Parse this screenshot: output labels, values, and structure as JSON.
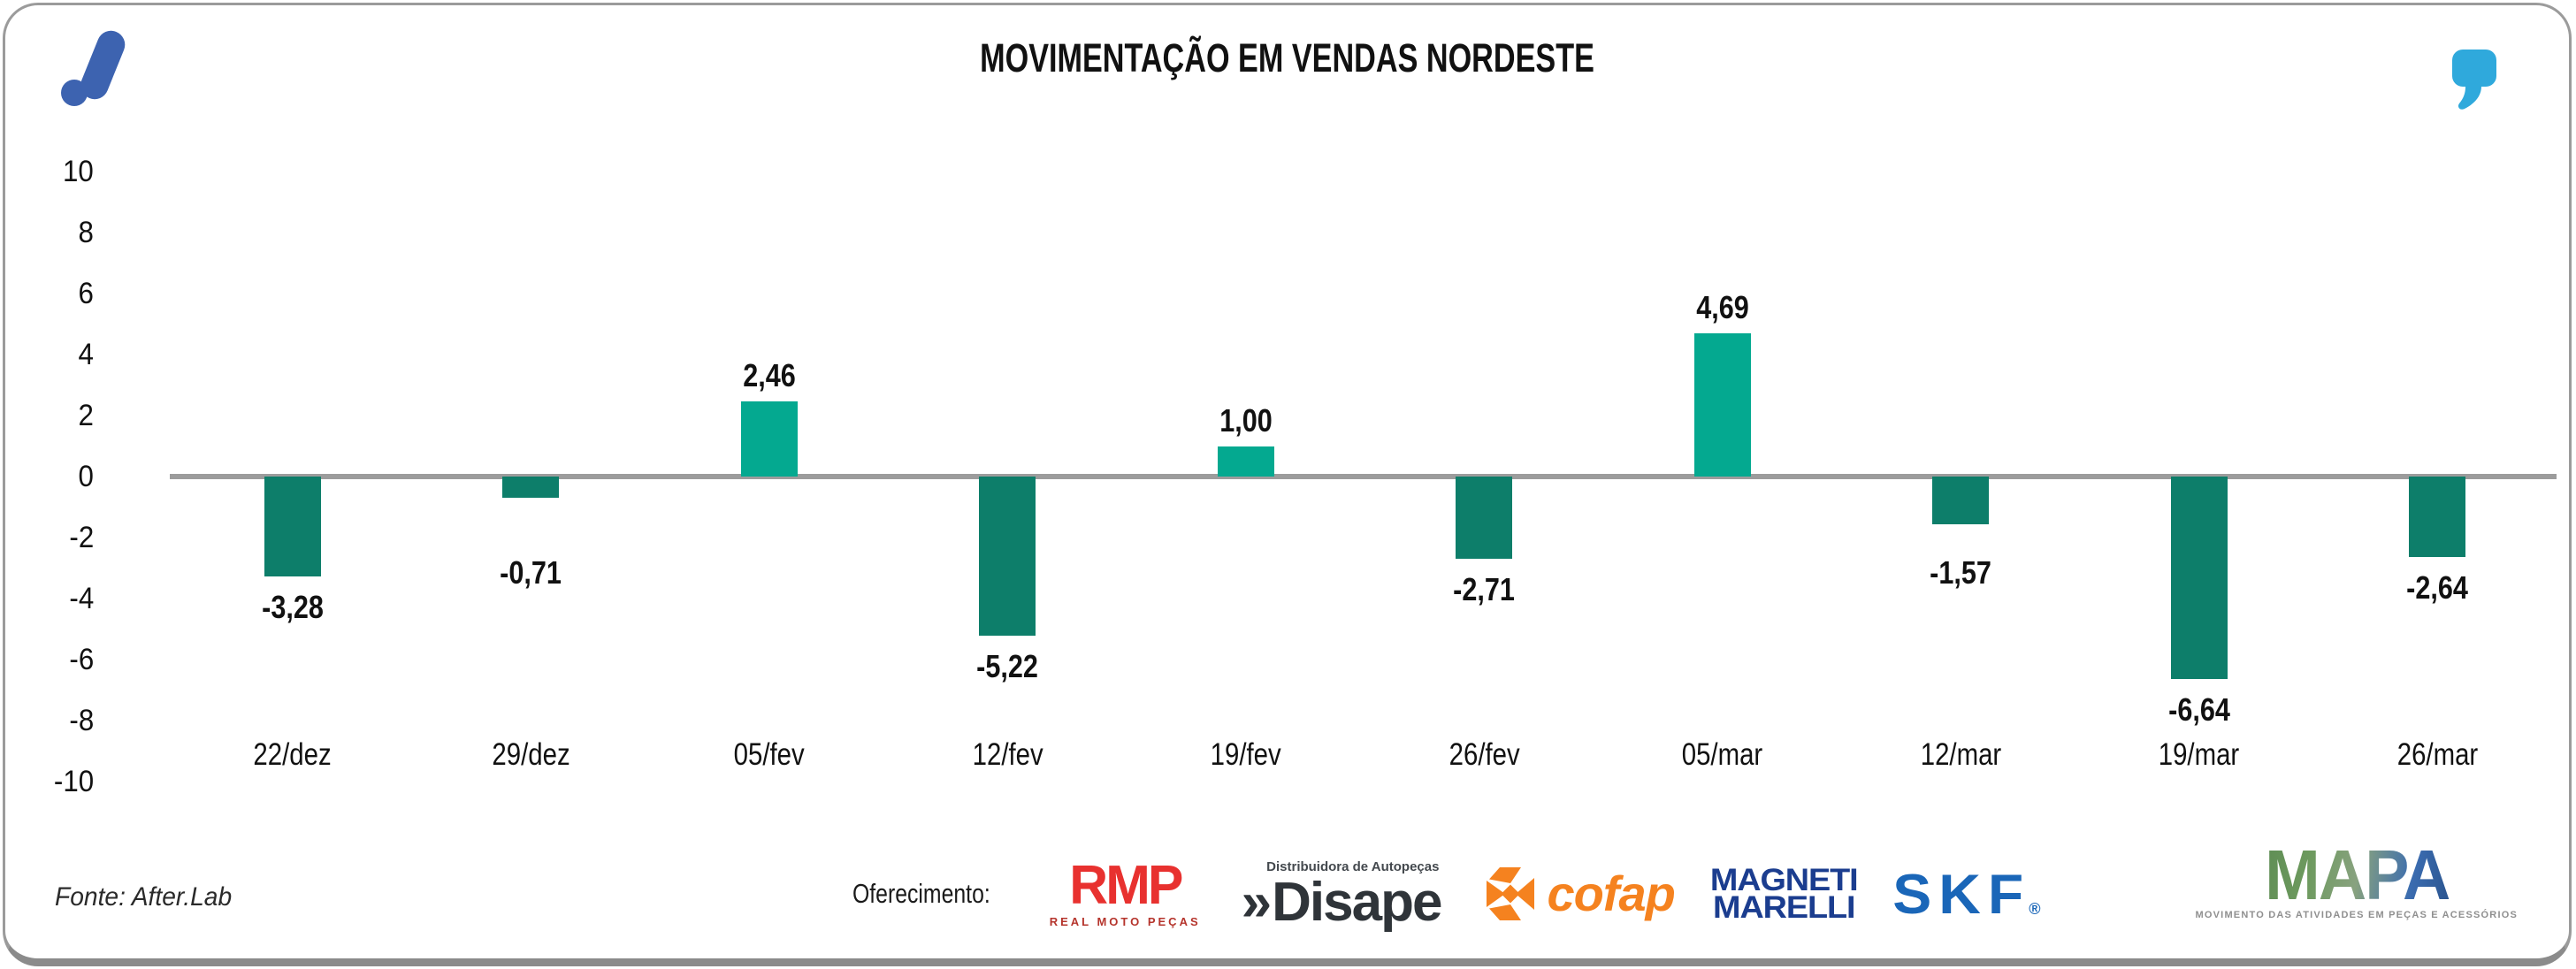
{
  "header": {
    "title": "MOVIMENTAÇÃO EM VENDAS NORDESTE",
    "brand_logo": "after-lab-mark",
    "quote_icon": "quote-mark"
  },
  "chart_data": {
    "type": "bar",
    "title": "MOVIMENTAÇÃO EM VENDAS NORDESTE",
    "categories": [
      "22/dez",
      "29/dez",
      "05/fev",
      "12/fev",
      "19/fev",
      "26/fev",
      "05/mar",
      "12/mar",
      "19/mar",
      "26/mar"
    ],
    "values": [
      -3.28,
      -0.71,
      2.46,
      -5.22,
      1.0,
      -2.71,
      4.69,
      -1.57,
      -6.64,
      -2.64
    ],
    "value_labels": [
      "-3,28",
      "-0,71",
      "2,46",
      "-5,22",
      "1,00",
      "-2,71",
      "4,69",
      "-1,57",
      "-6,64",
      "-2,64"
    ],
    "xlabel": "",
    "ylabel": "",
    "ylim": [
      -10,
      10
    ],
    "yticks": [
      10,
      8,
      6,
      4,
      2,
      0,
      -2,
      -4,
      -6,
      -8,
      -10
    ],
    "grid": false,
    "legend": false,
    "colors": {
      "positive_bar": "#04a990",
      "negative_bar": "#0d7e6a",
      "zero_line": "#9c9c9c",
      "text": "#111111"
    }
  },
  "branding": {
    "logo_color": "#3d63b0",
    "quote_color": "#2fa9dc"
  },
  "footer": {
    "source": "Fonte: After.Lab",
    "sponsors_label": "Oferecimento:",
    "sponsors": [
      {
        "name": "RMP",
        "subtitle": "REAL MOTO PEÇAS",
        "color": "#e8312f"
      },
      {
        "name": "Disape",
        "prefix": "»",
        "subtitle": "Distribuidora de Autopeças",
        "color": "#2f3439"
      },
      {
        "name": "cofap",
        "color": "#f5821f"
      },
      {
        "name": "MAGNETI MARELLI",
        "line1": "MAGNETI",
        "line2": "MARELLI",
        "color": "#1b3d8f"
      },
      {
        "name": "SKF",
        "registered": "®",
        "color": "#1a66b8"
      },
      {
        "name": "MAPA",
        "subtitle": "MOVIMENTO DAS ATIVIDADES EM PEÇAS E ACESSÓRIOS"
      }
    ]
  }
}
